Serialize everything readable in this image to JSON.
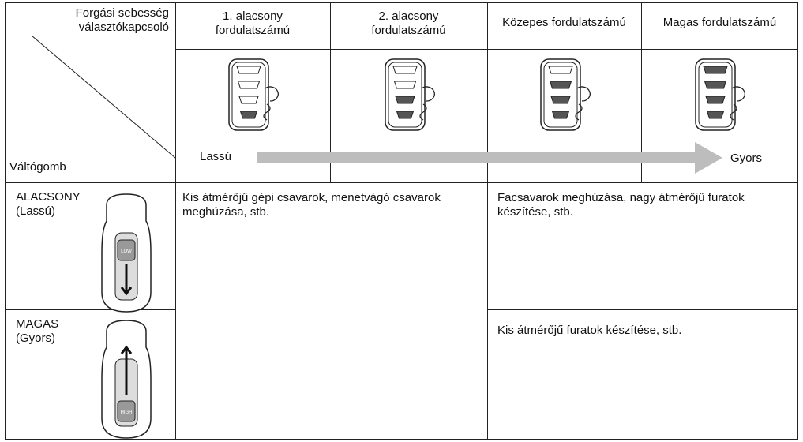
{
  "header": {
    "corner_top": "Forgási sebesség választókapcsoló",
    "corner_bottom": "Váltógomb",
    "columns": [
      "1. alacsony fordulatszámú",
      "2. alacsony fordulatszámú",
      "Közepes fordulatszámú",
      "Magas fordulatszámú"
    ],
    "arrow_start": "Lassú",
    "arrow_end": "Gyors"
  },
  "rows": [
    {
      "label": "ALACSONY",
      "sublabel": "(Lassú)",
      "button": "LOW"
    },
    {
      "label": "MAGAS",
      "sublabel": "(Gyors)",
      "button": "HIGH"
    }
  ],
  "uses": {
    "low_speeds": "Kis átmérőjű gépi csavarok, menetvágó csavarok meghúzása, stb.",
    "high_speeds_low_gear": "Facsavarok meghúzása, nagy átmérőjű furatok készítése, stb.",
    "high_speeds_high_gear": "Kis átmérőjű furatok készítése, stb."
  }
}
